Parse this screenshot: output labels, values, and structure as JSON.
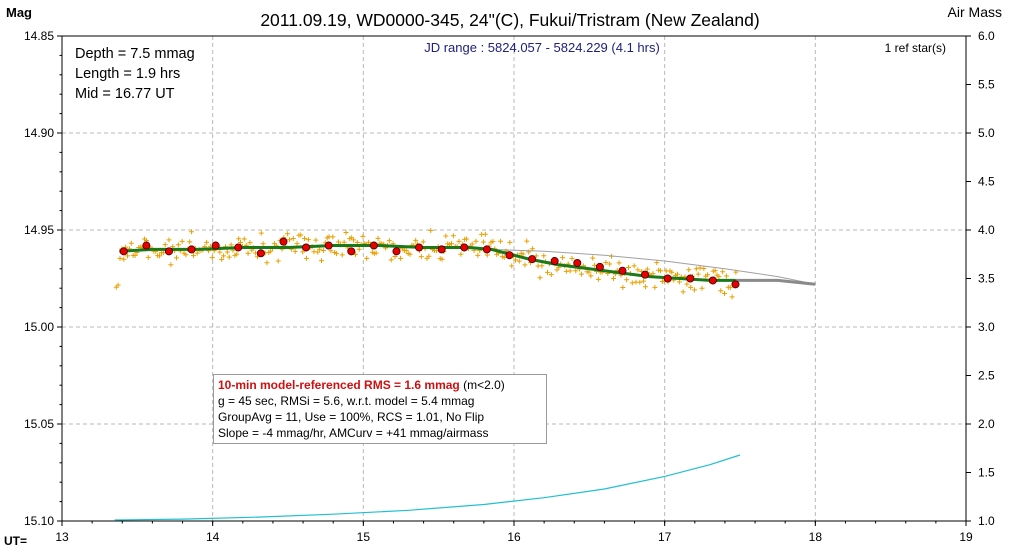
{
  "chart_data": {
    "type": "scatter",
    "title": "2011.09.19, WD0000-345, 24\"(C), Fukui/Tristram (New Zealand)",
    "ylabel": "Mag",
    "y2label": "Air Mass",
    "xlabel": "UT=",
    "jd_range": "JD range : 5824.057 - 5824.229 (4.1 hrs)",
    "ref_stars": "1 ref star(s)",
    "xlim": [
      13,
      19
    ],
    "ylim": [
      15.1,
      14.85
    ],
    "y2lim": [
      1.0,
      6.0
    ],
    "x_ticks": [
      "13",
      "14",
      "15",
      "16",
      "17",
      "18",
      "19"
    ],
    "y_ticks": [
      "14.85",
      "14.90",
      "14.95",
      "15.00",
      "15.05",
      "15.10"
    ],
    "y2_ticks": [
      "6.0",
      "5.5",
      "5.0",
      "4.5",
      "4.0",
      "3.5",
      "3.0",
      "2.5",
      "2.0",
      "1.5",
      "1.0"
    ],
    "grid": true,
    "colors": {
      "raw_points": "#e8a000",
      "binned_points": "#e80000",
      "model_fit": "#1a7a1a",
      "model_extension": "#8a8a8a",
      "airmass": "#20c0d0",
      "predicted_ingress": "#a0a0a0",
      "title_text": "#000000",
      "jd_text": "#202080"
    },
    "binned_points": {
      "x": [
        13.41,
        13.56,
        13.71,
        13.86,
        14.02,
        14.17,
        14.32,
        14.47,
        14.62,
        14.77,
        14.92,
        15.07,
        15.22,
        15.37,
        15.52,
        15.67,
        15.82,
        15.97,
        16.12,
        16.27,
        16.42,
        16.57,
        16.72,
        16.87,
        17.02,
        17.17,
        17.32,
        17.47
      ],
      "y": [
        14.961,
        14.958,
        14.961,
        14.96,
        14.958,
        14.959,
        14.962,
        14.956,
        14.959,
        14.958,
        14.961,
        14.958,
        14.961,
        14.959,
        14.96,
        14.959,
        14.96,
        14.963,
        14.965,
        14.966,
        14.967,
        14.969,
        14.971,
        14.973,
        14.975,
        14.975,
        14.976,
        14.978
      ]
    },
    "model_fit": {
      "x": [
        13.38,
        13.6,
        13.9,
        14.2,
        14.5,
        14.8,
        15.1,
        15.4,
        15.7,
        15.85,
        15.95,
        16.1,
        16.3,
        16.5,
        16.7,
        16.9,
        17.1,
        17.3,
        17.47
      ],
      "y": [
        14.961,
        14.96,
        14.96,
        14.959,
        14.959,
        14.958,
        14.958,
        14.959,
        14.959,
        14.96,
        14.962,
        14.965,
        14.968,
        14.97,
        14.972,
        14.974,
        14.975,
        14.976,
        14.976
      ]
    },
    "model_extension": {
      "x": [
        17.47,
        17.75,
        18.0
      ],
      "y": [
        14.976,
        14.976,
        14.978
      ]
    },
    "predicted_ingress_line": {
      "x": [
        15.85,
        16.2,
        16.6,
        17.0,
        17.4,
        17.75,
        18.0
      ],
      "y": [
        14.96,
        14.961,
        14.963,
        14.966,
        14.97,
        14.974,
        14.978
      ]
    },
    "airmass": {
      "x": [
        13.35,
        13.8,
        14.3,
        14.8,
        15.3,
        15.8,
        16.2,
        16.6,
        17.0,
        17.3,
        17.5
      ],
      "y": [
        1.01,
        1.02,
        1.04,
        1.07,
        1.11,
        1.17,
        1.24,
        1.33,
        1.46,
        1.58,
        1.68
      ]
    }
  },
  "stats": {
    "depth": "Depth = 7.5 mmag",
    "length": "Length = 1.9 hrs",
    "mid": "Mid = 16.77 UT"
  },
  "info": {
    "rms_highlight": "10-min model-referenced RMS = 1.6 mmag",
    "rms_condition": " (m<2.0)",
    "line2": "g = 45 sec, RMSi = 5.6, w.r.t. model = 5.4 mmag",
    "line3": "GroupAvg = 11, Use = 100%, RCS = 1.01, No Flip",
    "line4": "Slope = -4 mmag/hr, AMCurv = +41 mmag/airmass"
  }
}
